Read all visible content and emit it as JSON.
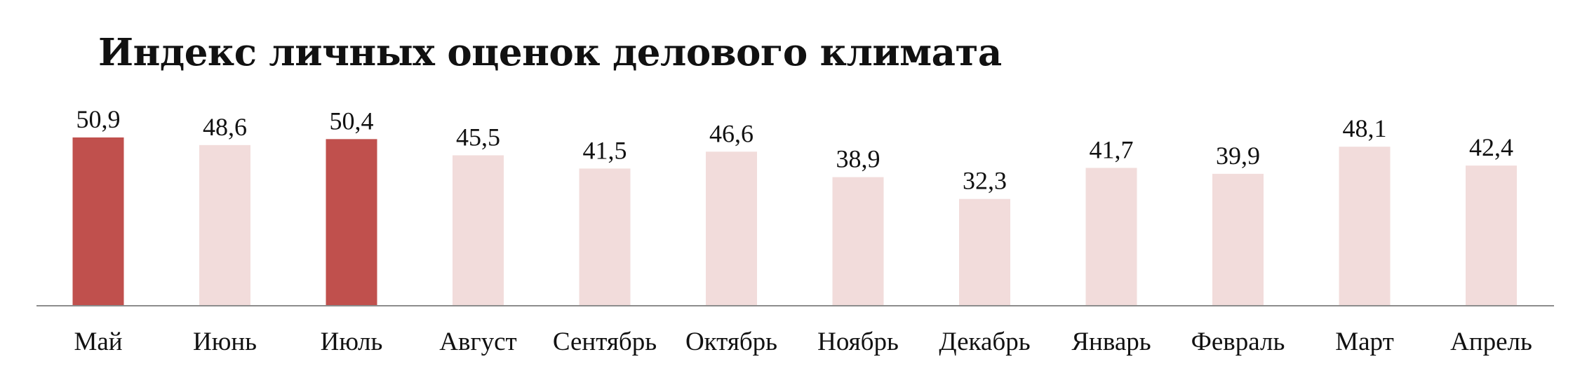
{
  "chart_data": {
    "type": "bar",
    "title": "Индекс личных оценок делового климата",
    "xlabel": "",
    "ylabel": "",
    "categories": [
      "Май",
      "Июнь",
      "Июль",
      "Август",
      "Сентябрь",
      "Октябрь",
      "Ноябрь",
      "Декабрь",
      "Январь",
      "Февраль",
      "Март",
      "Апрель"
    ],
    "values": [
      50.9,
      48.6,
      50.4,
      45.5,
      41.5,
      46.6,
      38.9,
      32.3,
      41.7,
      39.9,
      48.1,
      42.4
    ],
    "value_labels": [
      "50,9",
      "48,6",
      "50,4",
      "45,5",
      "41,5",
      "46,6",
      "38,9",
      "32,3",
      "41,7",
      "39,9",
      "48,1",
      "42,4"
    ],
    "highlighted": [
      true,
      false,
      true,
      false,
      false,
      false,
      false,
      false,
      false,
      false,
      false,
      false
    ],
    "ylim": [
      0,
      50.9
    ],
    "grid": false,
    "legend": "none",
    "colors": {
      "highlight": "#c0504d",
      "normal": "#f2dcdb",
      "axis": "#8c8c8c",
      "text": "#111111"
    }
  }
}
